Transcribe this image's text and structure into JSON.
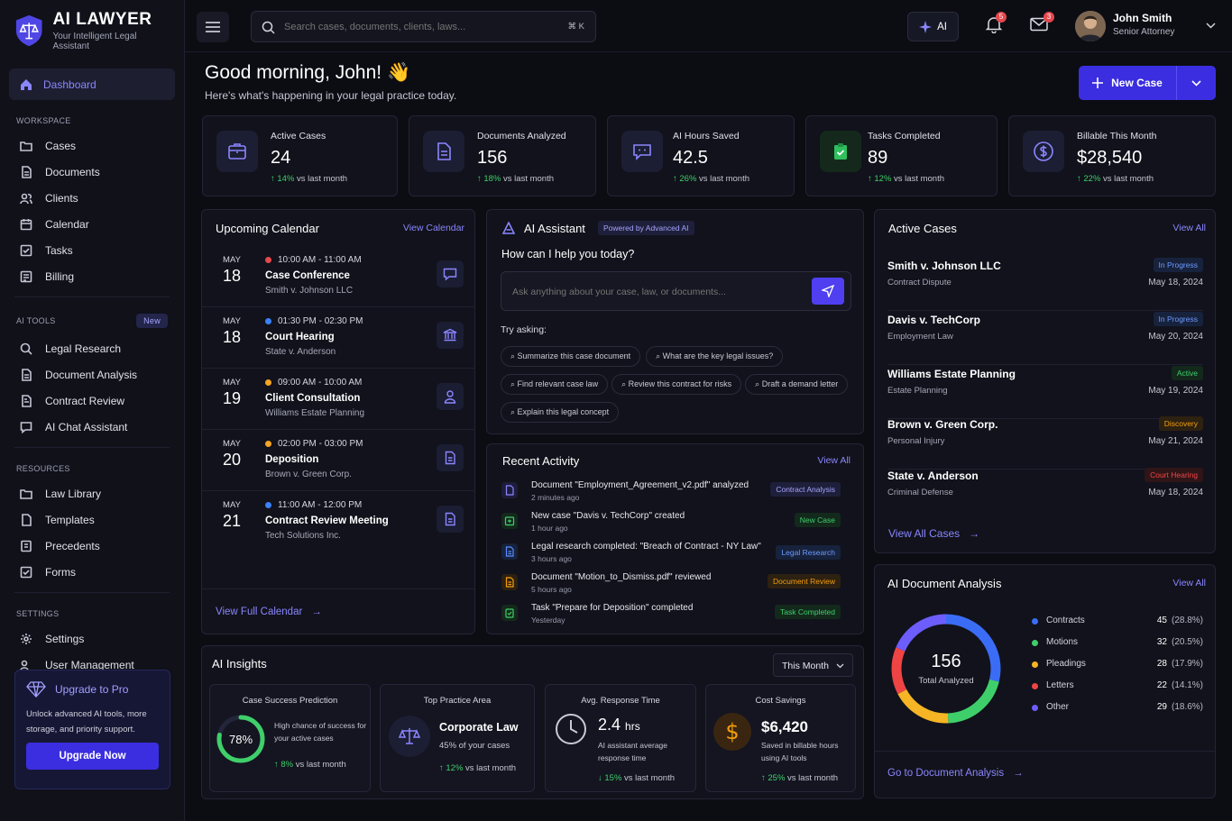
{
  "brand": {
    "name": "AI LAWYER",
    "tagline": "Your Intelligent Legal Assistant"
  },
  "nav": {
    "dashboard": "Dashboard",
    "workspace_title": "WORKSPACE",
    "workspace": [
      "Cases",
      "Documents",
      "Clients",
      "Calendar",
      "Tasks",
      "Billing"
    ],
    "ai_tools_title": "AI TOOLS",
    "ai_tools_badge": "New",
    "ai_tools": [
      "Legal Research",
      "Document Analysis",
      "Contract Review",
      "AI Chat Assistant"
    ],
    "resources_title": "RESOURCES",
    "resources": [
      "Law Library",
      "Templates",
      "Precedents",
      "Forms"
    ],
    "settings_title": "SETTINGS",
    "settings": [
      "Settings",
      "User Management"
    ]
  },
  "upgrade": {
    "title": "Upgrade to Pro",
    "text": "Unlock advanced AI tools, more storage, and priority support.",
    "button": "Upgrade Now"
  },
  "topbar": {
    "search_placeholder": "Search cases, documents, clients, laws...",
    "shortcut": "⌘ K",
    "ai_label": "AI",
    "notif_count": "5",
    "mail_count": "3",
    "user_name": "John Smith",
    "user_role": "Senior Attorney"
  },
  "greeting": {
    "title": "Good morning, John! 👋",
    "subtitle": "Here's what's happening in your legal practice today.",
    "new_case": "New Case"
  },
  "stats": [
    {
      "label": "Active Cases",
      "value": "24",
      "delta": "14%",
      "suffix": "vs last month"
    },
    {
      "label": "Documents Analyzed",
      "value": "156",
      "delta": "18%",
      "suffix": "vs last month"
    },
    {
      "label": "AI Hours Saved",
      "value": "42.5",
      "delta": "26%",
      "suffix": "vs last month"
    },
    {
      "label": "Tasks Completed",
      "value": "89",
      "delta": "12%",
      "suffix": "vs last month"
    },
    {
      "label": "Billable This Month",
      "value": "$28,540",
      "delta": "22%",
      "suffix": "vs last month"
    }
  ],
  "calendar": {
    "title": "Upcoming Calendar",
    "view_link": "View Calendar",
    "footer": "View Full Calendar",
    "events": [
      {
        "month": "MAY",
        "day": "18",
        "time": "10:00 AM - 11:00 AM",
        "title": "Case Conference",
        "sub": "Smith v. Johnson LLC",
        "dot": "#e5484d"
      },
      {
        "month": "MAY",
        "day": "18",
        "time": "01:30 PM - 02:30 PM",
        "title": "Court Hearing",
        "sub": "State v. Anderson",
        "dot": "#3b82f6"
      },
      {
        "month": "MAY",
        "day": "19",
        "time": "09:00 AM - 10:00 AM",
        "title": "Client Consultation",
        "sub": "Williams Estate Planning",
        "dot": "#f5a524"
      },
      {
        "month": "MAY",
        "day": "20",
        "time": "02:00 PM - 03:00 PM",
        "title": "Deposition",
        "sub": "Brown v. Green Corp.",
        "dot": "#f5a524"
      },
      {
        "month": "MAY",
        "day": "21",
        "time": "11:00 AM - 12:00 PM",
        "title": "Contract Review Meeting",
        "sub": "Tech Solutions Inc.",
        "dot": "#3b82f6"
      }
    ]
  },
  "assistant": {
    "title": "AI Assistant",
    "badge": "Powered by Advanced AI",
    "prompt": "How can I help you today?",
    "placeholder": "Ask anything about your case, law, or documents...",
    "try": "Try asking:",
    "chips": [
      "Summarize this case document",
      "What are the key legal issues?",
      "Find relevant case law",
      "Review this contract for risks",
      "Draft a demand letter",
      "Explain this legal concept"
    ]
  },
  "activity": {
    "title": "Recent Activity",
    "view": "View All",
    "items": [
      {
        "text": "Document \"Employment_Agreement_v2.pdf\" analyzed",
        "ago": "2 minutes ago",
        "tag": "Contract Analysis",
        "color": "#8b86ff"
      },
      {
        "text": "New case \"Davis v. TechCorp\" created",
        "ago": "1 hour ago",
        "tag": "New Case",
        "color": "#3fcf6a"
      },
      {
        "text": "Legal research completed: \"Breach of Contract - NY Law\"",
        "ago": "3 hours ago",
        "tag": "Legal Research",
        "color": "#5b8cff"
      },
      {
        "text": "Document \"Motion_to_Dismiss.pdf\" reviewed",
        "ago": "5 hours ago",
        "tag": "Document Review",
        "color": "#f59e0b"
      },
      {
        "text": "Task \"Prepare for Deposition\" completed",
        "ago": "Yesterday",
        "tag": "Task Completed",
        "color": "#3fcf6a"
      }
    ]
  },
  "cases": {
    "title": "Active Cases",
    "view": "View All",
    "footer": "View All Cases",
    "items": [
      {
        "name": "Smith v. Johnson LLC",
        "type": "Contract Dispute",
        "status": "In Progress",
        "date": "May 18, 2024",
        "color": "#5b8cff"
      },
      {
        "name": "Davis v. TechCorp",
        "type": "Employment Law",
        "status": "In Progress",
        "date": "May 20, 2024",
        "color": "#5b8cff"
      },
      {
        "name": "Williams Estate Planning",
        "type": "Estate Planning",
        "status": "Active",
        "date": "May 19, 2024",
        "color": "#3fcf6a"
      },
      {
        "name": "Brown v. Green Corp.",
        "type": "Personal Injury",
        "status": "Discovery",
        "date": "May 21, 2024",
        "color": "#f59e0b"
      },
      {
        "name": "State v. Anderson",
        "type": "Criminal Defense",
        "status": "Court Hearing",
        "date": "May 18, 2024",
        "color": "#ef4444"
      }
    ]
  },
  "insights": {
    "title": "AI Insights",
    "period": "This Month",
    "success": {
      "title": "Case Success Prediction",
      "value": "78%",
      "pct": 78,
      "text": "High chance of success for your active cases",
      "delta": "8%",
      "suffix": "vs last month"
    },
    "practice": {
      "title": "Top Practice Area",
      "value": "Corporate Law",
      "text": "45% of your cases",
      "delta": "12%",
      "suffix": "vs last month"
    },
    "response": {
      "title": "Avg. Response Time",
      "value": "2.4",
      "unit": "hrs",
      "text": "AI assistant average response time",
      "delta": "15%",
      "suffix": "vs last month"
    },
    "savings": {
      "title": "Cost Savings",
      "value": "$6,420",
      "text": "Saved in billable hours using AI tools",
      "delta": "25%",
      "suffix": "vs last month"
    }
  },
  "doc_analysis": {
    "title": "AI Document Analysis",
    "view": "View All",
    "total": "156",
    "total_label": "Total Analyzed",
    "footer": "Go to Document Analysis",
    "items": [
      {
        "name": "Contracts",
        "count": "45",
        "pct": "(28.8%)",
        "color": "#3b6cf6",
        "value": 45
      },
      {
        "name": "Motions",
        "count": "32",
        "pct": "(20.5%)",
        "color": "#3fcf6a",
        "value": 32
      },
      {
        "name": "Pleadings",
        "count": "28",
        "pct": "(17.9%)",
        "color": "#f5b524",
        "value": 28
      },
      {
        "name": "Letters",
        "count": "22",
        "pct": "(14.1%)",
        "color": "#ef4444",
        "value": 22
      },
      {
        "name": "Other",
        "count": "29",
        "pct": "(18.6%)",
        "color": "#6d5dfc",
        "value": 29
      }
    ]
  }
}
